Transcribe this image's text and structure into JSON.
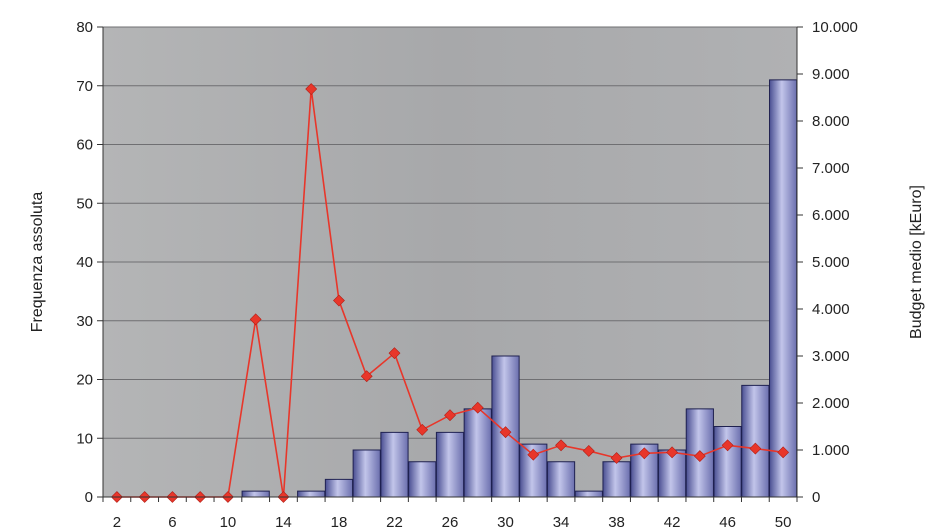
{
  "chart_data": {
    "type": "bar",
    "x": [
      2,
      4,
      6,
      8,
      10,
      12,
      14,
      16,
      18,
      20,
      22,
      24,
      26,
      28,
      30,
      32,
      34,
      36,
      38,
      40,
      42,
      44,
      46,
      48,
      50
    ],
    "x_tick_labels": [
      "2",
      "6",
      "10",
      "14",
      "18",
      "22",
      "26",
      "30",
      "34",
      "38",
      "42",
      "46",
      "50"
    ],
    "ylabel": "Frequenza assoluta",
    "y2label": "Budget medio [kEuro]",
    "ylim": [
      0,
      80
    ],
    "y_ticks": [
      0,
      10,
      20,
      30,
      40,
      50,
      60,
      70,
      80
    ],
    "y_tick_labels": [
      "0",
      "10",
      "20",
      "30",
      "40",
      "50",
      "60",
      "70",
      "80"
    ],
    "y2lim": [
      0,
      10000
    ],
    "y2_ticks": [
      0,
      1000,
      2000,
      3000,
      4000,
      5000,
      6000,
      7000,
      8000,
      9000,
      10000
    ],
    "y2_tick_labels": [
      "0",
      "1.000",
      "2.000",
      "3.000",
      "4.000",
      "5.000",
      "6.000",
      "7.000",
      "8.000",
      "9.000",
      "10.000"
    ],
    "grid": "horizontal",
    "series": [
      {
        "type": "bar",
        "axis": "left",
        "color": "#8f92c6",
        "values": [
          0,
          0,
          0,
          0,
          0,
          1,
          0,
          1,
          3,
          8,
          11,
          6,
          11,
          15,
          24,
          9,
          6,
          1,
          6,
          9,
          8,
          15,
          12,
          19,
          71
        ]
      },
      {
        "type": "line",
        "axis": "right",
        "color": "#e8362a",
        "marker": "diamond",
        "values": [
          0,
          0,
          0,
          0,
          0,
          3780,
          0,
          8680,
          4180,
          2570,
          3060,
          1430,
          1740,
          1900,
          1380,
          900,
          1100,
          980,
          830,
          930,
          950,
          870,
          1100,
          1030,
          950
        ]
      }
    ]
  }
}
